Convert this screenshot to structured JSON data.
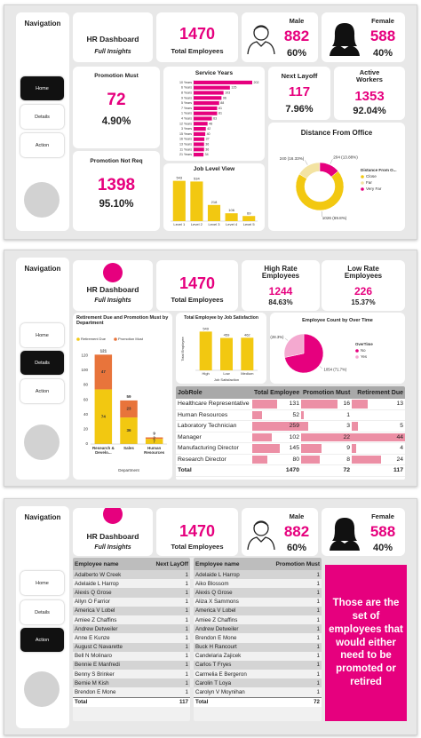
{
  "screens": [
    {
      "nav": {
        "title": "Navigation",
        "buttons": [
          "Home",
          "Details",
          "Action"
        ],
        "active": 0
      },
      "brand": {
        "title": "HR Dashboard",
        "subtitle": "Full Insights"
      },
      "total": {
        "value": "1470",
        "label": "Total Employees"
      },
      "male": {
        "label": "Male",
        "value": "882",
        "share": "60%"
      },
      "female": {
        "label": "Female",
        "value": "588",
        "share": "40%"
      },
      "promotion_must": {
        "label": "Promotion Must",
        "value": "72",
        "share": "4.90%"
      },
      "promotion_not_req": {
        "label": "Promotion Not Req",
        "value": "1398",
        "share": "95.10%"
      },
      "next_layoff": {
        "label": "Next Layoff",
        "value": "117",
        "share": "7.96%"
      },
      "active_workers": {
        "label": "Active Workers",
        "value": "1353",
        "share": "92.04%"
      }
    },
    {
      "nav": {
        "title": "Navigation",
        "buttons": [
          "Home",
          "Details",
          "Action"
        ],
        "active": 1
      },
      "brand": {
        "title": "HR Dashboard",
        "subtitle": "Full Insights"
      },
      "total": {
        "value": "1470",
        "label": "Total Employees"
      },
      "high_rate": {
        "label": "High Rate Employees",
        "value": "1244",
        "share": "84.63%"
      },
      "low_rate": {
        "label": "Low Rate Employees",
        "value": "226",
        "share": "15.37%"
      },
      "table": {
        "columns": [
          "JobRole",
          "Total Employee",
          "Promotion Must",
          "Retirement Due"
        ],
        "rows": [
          [
            "Healthcare Representative",
            131,
            16,
            13
          ],
          [
            "Human Resources",
            52,
            1,
            null
          ],
          [
            "Laboratory Technician",
            259,
            3,
            5
          ],
          [
            "Manager",
            102,
            22,
            44
          ],
          [
            "Manufacturing Director",
            145,
            9,
            4
          ],
          [
            "Research Director",
            80,
            8,
            24
          ]
        ],
        "total": [
          "Total",
          1470,
          72,
          117
        ],
        "data_bars": true,
        "bar_color": "#ec8fa5"
      }
    },
    {
      "nav": {
        "title": "Navigation",
        "buttons": [
          "Home",
          "Details",
          "Action"
        ],
        "active": 2
      },
      "brand": {
        "title": "HR Dashboard",
        "subtitle": "Full Insights"
      },
      "total": {
        "value": "1470",
        "label": "Total Employees"
      },
      "male": {
        "label": "Male",
        "value": "882",
        "share": "60%"
      },
      "female": {
        "label": "Female",
        "value": "588",
        "share": "40%"
      },
      "layoff_table": {
        "columns": [
          "Employee name",
          "Next LayOff"
        ],
        "rows": [
          [
            "Adalberto W Creek",
            1
          ],
          [
            "Adelaide L Harrop",
            1
          ],
          [
            "Alexis Q Grose",
            1
          ],
          [
            "Allyn O Farrior",
            1
          ],
          [
            "America V Lobel",
            1
          ],
          [
            "Amiee Z Chaffins",
            1
          ],
          [
            "Andrew Detweiler",
            1
          ],
          [
            "Anne E Kunze",
            1
          ],
          [
            "August C Navarette",
            1
          ],
          [
            "Bell N Molinaro",
            1
          ],
          [
            "Bennie E Manfredi",
            1
          ],
          [
            "Benny S Brinker",
            1
          ],
          [
            "Bernie M Kish",
            1
          ],
          [
            "Brendon E Mone",
            1
          ]
        ],
        "total": [
          "Total",
          117
        ]
      },
      "promotion_table": {
        "columns": [
          "Employee name",
          "Promotion Must"
        ],
        "rows": [
          [
            "Adelaide L Harrop",
            1
          ],
          [
            "Aiko Blossom",
            1
          ],
          [
            "Alexis Q Grose",
            1
          ],
          [
            "Aliza X Sammons",
            1
          ],
          [
            "America V Lobel",
            1
          ],
          [
            "Amiee Z Chaffins",
            1
          ],
          [
            "Andrew Detweiler",
            1
          ],
          [
            "Brendon E Mone",
            1
          ],
          [
            "Buck H Rancourt",
            1
          ],
          [
            "Candelaria Zajicek",
            1
          ],
          [
            "Carlos T Fryes",
            1
          ],
          [
            "Carmelia E Bergeron",
            1
          ],
          [
            "Carolin T Loya",
            1
          ],
          [
            "Carolyn V Moynihan",
            1
          ]
        ],
        "total": [
          "Total",
          72
        ]
      },
      "note": "Those are the set of employees that would either need to be promoted or retired"
    }
  ],
  "chart_data": [
    {
      "type": "bar",
      "orientation": "horizontal",
      "title": "Service Years",
      "categories": [
        "10 Years",
        "6 Years",
        "8 Years",
        "9 Years",
        "5 Years",
        "7 Years",
        "1 Years",
        "4 Years",
        "12 Years",
        "3 Years",
        "15 Years",
        "16 Years",
        "13 Years",
        "11 Years",
        "21 Years"
      ],
      "values": [
        202,
        125,
        103,
        96,
        88,
        81,
        81,
        63,
        48,
        42,
        40,
        37,
        36,
        36,
        34
      ],
      "color": "#e6007e"
    },
    {
      "type": "bar",
      "title": "Job Level View",
      "categories": [
        "Level 1",
        "Level 2",
        "Level 3",
        "Level 4",
        "Level 5"
      ],
      "values": [
        543,
        534,
        218,
        106,
        69
      ],
      "color": "#f2c811"
    },
    {
      "type": "donut",
      "title": "Distance From Office",
      "legend_title": "Distance From O...",
      "categories": [
        "Close",
        "Far",
        "Very Far"
      ],
      "values": [
        1026,
        240,
        204
      ],
      "value_labels": [
        "1026 (69.8%)",
        "240 (16.33%)",
        "204 (13.88%)"
      ],
      "colors": [
        "#f2c811",
        "#f3e3a2",
        "#e6007e"
      ]
    },
    {
      "type": "stacked_bar",
      "title": "Retirement Due and Promotion Must by Department",
      "categories": [
        "Research & Develo...",
        "Sales",
        "Human Resources"
      ],
      "series": [
        {
          "name": "Retirement Due",
          "color": "#f2c811",
          "values": [
            74,
            36,
            7
          ]
        },
        {
          "name": "Promotion Must",
          "color": "#e8743b",
          "values": [
            47,
            23,
            2
          ]
        }
      ],
      "total_labels": [
        121,
        59,
        9
      ],
      "xlabel": "Department",
      "ylim": [
        0,
        125
      ],
      "yticks": [
        0,
        20,
        40,
        60,
        80,
        100,
        120
      ]
    },
    {
      "type": "bar",
      "title": "Total Employee by Job Satisfaction",
      "categories": [
        "High",
        "Low",
        "Medium"
      ],
      "values": [
        549,
        459,
        462
      ],
      "color": "#f2c811",
      "xlabel": "Job Satisfaction",
      "ylabel": "Total Employee"
    },
    {
      "type": "pie",
      "title": "Employee Count by Over Time",
      "legend_title": "OverTime",
      "categories": [
        "No",
        "Yes"
      ],
      "values": [
        1054,
        416
      ],
      "value_labels": [
        "1054 (71.7%)",
        "416 (28.3%)"
      ],
      "colors": [
        "#e6007e",
        "#f4a9d0"
      ]
    }
  ]
}
